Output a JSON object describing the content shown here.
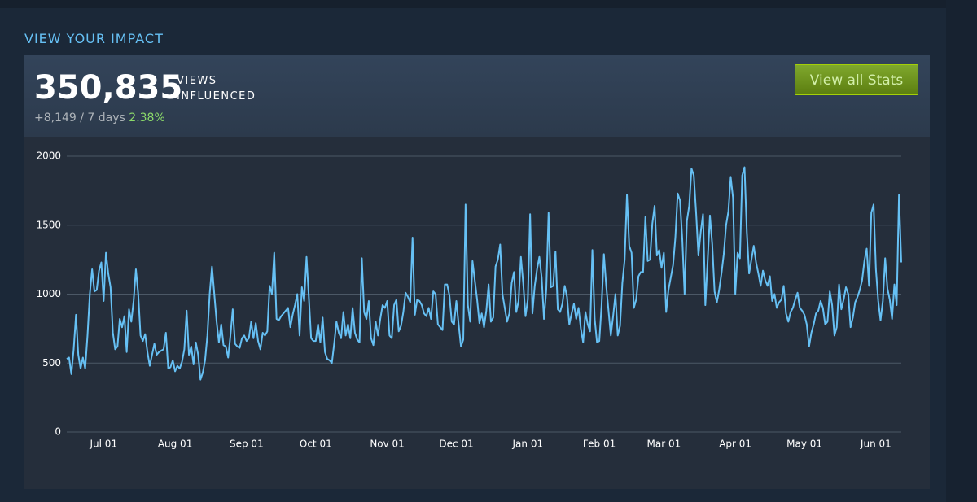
{
  "header": {
    "section_title": "VIEW YOUR IMPACT",
    "total": "350,835",
    "unit_line1": "VIEWS",
    "unit_line2": "INFLUENCED",
    "change": "+8,149 / 7 days",
    "change_pct": "2.38%",
    "button": "View all Stats"
  },
  "chart_data": {
    "type": "line",
    "color": "#66c0f4",
    "grid": true,
    "ylim": [
      0,
      2000
    ],
    "yticks": [
      0,
      500,
      1000,
      1500,
      2000
    ],
    "categories": [
      null,
      null,
      null,
      null,
      null,
      null,
      null,
      null,
      null,
      null,
      null,
      null,
      null,
      null,
      null,
      null,
      "Jul 01",
      null,
      null,
      null,
      null,
      null,
      null,
      null,
      null,
      null,
      null,
      null,
      null,
      null,
      null,
      null,
      null,
      null,
      null,
      null,
      null,
      null,
      null,
      null,
      null,
      null,
      null,
      null,
      null,
      null,
      null,
      "Aug 01",
      null,
      null,
      null,
      null,
      null,
      null,
      null,
      null,
      null,
      null,
      null,
      null,
      null,
      null,
      null,
      null,
      null,
      null,
      null,
      null,
      null,
      null,
      null,
      null,
      null,
      null,
      null,
      null,
      null,
      null,
      "Sep 01",
      null,
      null,
      null,
      null,
      null,
      null,
      null,
      null,
      null,
      null,
      null,
      null,
      null,
      null,
      null,
      null,
      null,
      null,
      null,
      null,
      null,
      null,
      null,
      null,
      null,
      null,
      null,
      null,
      null,
      "Oct 01",
      null,
      null,
      null,
      null,
      null,
      null,
      null,
      null,
      null,
      null,
      null,
      null,
      null,
      null,
      null,
      null,
      null,
      null,
      null,
      null,
      null,
      null,
      null,
      null,
      null,
      null,
      null,
      null,
      null,
      null,
      "Nov 01",
      null,
      null,
      null,
      null,
      null,
      null,
      null,
      null,
      null,
      null,
      null,
      null,
      null,
      null,
      null,
      null,
      null,
      null,
      null,
      null,
      null,
      null,
      null,
      null,
      null,
      null,
      null,
      null,
      null,
      "Dec 01",
      null,
      null,
      null,
      null,
      null,
      null,
      null,
      null,
      null,
      null,
      null,
      null,
      null,
      null,
      null,
      null,
      null,
      null,
      null,
      null,
      null,
      null,
      null,
      null,
      null,
      null,
      null,
      null,
      null,
      null,
      "Jan 01",
      null,
      null,
      null,
      null,
      null,
      null,
      null,
      null,
      null,
      null,
      null,
      null,
      null,
      null,
      null,
      null,
      null,
      null,
      null,
      null,
      null,
      null,
      null,
      null,
      null,
      null,
      null,
      null,
      null,
      null,
      "Feb 01",
      null,
      null,
      null,
      null,
      null,
      null,
      null,
      null,
      null,
      null,
      null,
      null,
      null,
      null,
      null,
      null,
      null,
      null,
      null,
      null,
      null,
      null,
      null,
      null,
      null,
      null,
      null,
      "Mar 01",
      null,
      null,
      null,
      null,
      null,
      null,
      null,
      null,
      null,
      null,
      null,
      null,
      null,
      null,
      null,
      null,
      null,
      null,
      null,
      null,
      null,
      null,
      null,
      null,
      null,
      null,
      null,
      null,
      null,
      null,
      "Apr 01",
      null,
      null,
      null,
      null,
      null,
      null,
      null,
      null,
      null,
      null,
      null,
      null,
      null,
      null,
      null,
      null,
      null,
      null,
      null,
      null,
      null,
      null,
      null,
      null,
      null,
      null,
      null,
      null,
      null,
      "May 01",
      null,
      null,
      null,
      null,
      null,
      null,
      null,
      null,
      null,
      null,
      null,
      null,
      null,
      null,
      null,
      null,
      null,
      null,
      null,
      null,
      null,
      null,
      null,
      null,
      null,
      null,
      null,
      null,
      null,
      null,
      "Jun 01",
      null,
      null,
      null,
      null,
      null,
      null,
      null,
      null,
      null,
      null,
      null
    ],
    "values": [
      530,
      540,
      420,
      600,
      850,
      560,
      460,
      540,
      460,
      700,
      1000,
      1180,
      1020,
      1030,
      1170,
      1230,
      950,
      1300,
      1150,
      1050,
      720,
      600,
      620,
      820,
      760,
      840,
      580,
      890,
      800,
      950,
      1180,
      1000,
      700,
      660,
      710,
      580,
      480,
      560,
      640,
      560,
      580,
      590,
      600,
      720,
      460,
      470,
      520,
      440,
      480,
      460,
      510,
      600,
      880,
      560,
      620,
      490,
      650,
      560,
      380,
      430,
      520,
      700,
      1000,
      1200,
      1000,
      800,
      650,
      780,
      630,
      620,
      540,
      700,
      890,
      640,
      620,
      610,
      680,
      700,
      660,
      680,
      800,
      680,
      790,
      660,
      600,
      720,
      700,
      730,
      1060,
      1000,
      1300,
      820,
      810,
      840,
      860,
      880,
      900,
      760,
      850,
      920,
      1000,
      700,
      1050,
      950,
      1270,
      980,
      680,
      660,
      660,
      780,
      650,
      830,
      580,
      530,
      520,
      500,
      640,
      800,
      720,
      680,
      870,
      700,
      780,
      680,
      900,
      720,
      670,
      650,
      1260,
      870,
      820,
      950,
      680,
      630,
      800,
      700,
      820,
      920,
      900,
      950,
      700,
      680,
      920,
      960,
      730,
      770,
      870,
      1010,
      980,
      940,
      1410,
      850,
      960,
      950,
      920,
      860,
      840,
      900,
      820,
      1020,
      1000,
      780,
      760,
      740,
      1070,
      1070,
      990,
      800,
      780,
      950,
      780,
      620,
      670,
      1650,
      920,
      800,
      1240,
      1100,
      960,
      790,
      860,
      760,
      880,
      1070,
      800,
      830,
      1200,
      1250,
      1360,
      1000,
      900,
      800,
      860,
      1080,
      1160,
      870,
      950,
      1270,
      1080,
      840,
      960,
      1580,
      860,
      1060,
      1180,
      1270,
      1120,
      820,
      1030,
      1590,
      1050,
      1060,
      1310,
      890,
      870,
      930,
      1060,
      980,
      780,
      860,
      930,
      820,
      900,
      750,
      650,
      870,
      780,
      730,
      1320,
      820,
      650,
      660,
      920,
      1290,
      1060,
      880,
      700,
      840,
      1000,
      700,
      770,
      1080,
      1250,
      1720,
      1350,
      1300,
      900,
      960,
      1130,
      1160,
      1160,
      1560,
      1240,
      1250,
      1510,
      1640,
      1280,
      1320,
      1190,
      1300,
      870,
      1030,
      1120,
      1210,
      1410,
      1730,
      1680,
      1400,
      1000,
      1530,
      1640,
      1910,
      1860,
      1590,
      1280,
      1450,
      1580,
      920,
      1240,
      1570,
      1360,
      1020,
      940,
      1030,
      1150,
      1290,
      1500,
      1600,
      1850,
      1700,
      1000,
      1300,
      1260,
      1860,
      1920,
      1450,
      1150,
      1250,
      1350,
      1230,
      1150,
      1060,
      1170,
      1100,
      1060,
      1130,
      950,
      1000,
      900,
      940,
      960,
      1060,
      860,
      800,
      870,
      900,
      960,
      1010,
      900,
      880,
      850,
      780,
      620,
      720,
      780,
      860,
      880,
      950,
      900,
      780,
      800,
      1020,
      920,
      700,
      760,
      1070,
      890,
      960,
      1050,
      1000,
      760,
      830,
      940,
      980,
      1030,
      1100,
      1240,
      1330,
      1060,
      1590,
      1650,
      1180,
      950,
      810,
      950,
      1260,
      1040,
      960,
      820,
      1070,
      920,
      1720,
      1230
    ]
  }
}
